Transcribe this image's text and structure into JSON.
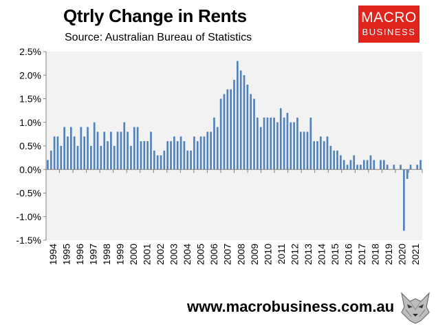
{
  "header": {
    "title": "Qtrly Change in Rents",
    "subtitle": "Source: Australian Bureau of Statistics"
  },
  "logo": {
    "line1": "MACRO",
    "line2": "BUSINESS",
    "color": "#e0231c"
  },
  "footer": {
    "url": "www.macrobusiness.com.au"
  },
  "colors": {
    "bar": "#4f81bd",
    "plot_bg": "#f2f2f2",
    "axis": "#808080"
  },
  "chart_data": {
    "type": "bar",
    "title": "Qtrly Change in Rents",
    "subtitle": "Source: Australian Bureau of Statistics",
    "xlabel": "",
    "ylabel": "",
    "ylim": [
      -0.015,
      0.025
    ],
    "yticks": [
      {
        "value": 0.025,
        "label": "2.5%"
      },
      {
        "value": 0.02,
        "label": "2.0%"
      },
      {
        "value": 0.015,
        "label": "1.5%"
      },
      {
        "value": 0.01,
        "label": "1.0%"
      },
      {
        "value": 0.005,
        "label": "0.5%"
      },
      {
        "value": 0,
        "label": "0.0%"
      },
      {
        "value": -0.005,
        "label": "-0.5%"
      },
      {
        "value": -0.01,
        "label": "-1.0%"
      },
      {
        "value": -0.015,
        "label": "-1.5%"
      }
    ],
    "xtick_labels": [
      "1994",
      "1995",
      "1996",
      "1997",
      "1998",
      "1999",
      "2000",
      "2001",
      "2002",
      "2003",
      "2004",
      "2005",
      "2006",
      "2007",
      "2008",
      "2009",
      "2010",
      "2011",
      "2012",
      "2013",
      "2014",
      "2015",
      "2016",
      "2017",
      "2018",
      "2019",
      "2020",
      "2021"
    ],
    "grid": false,
    "legend": "none",
    "series": [
      {
        "values": [
          0.002,
          0.004,
          0.007,
          0.007,
          0.005,
          0.009,
          0.007,
          0.009,
          0.007,
          0.005,
          0.009,
          0.007,
          0.009,
          0.005,
          0.01,
          0.008,
          0.005,
          0.008,
          0.006,
          0.008,
          0.005,
          0.008,
          0.008,
          0.01,
          0.008,
          0.005,
          0.009,
          0.009,
          0.006,
          0.006,
          0.006,
          0.008,
          0.004,
          0.003,
          0.003,
          0.004,
          0.006,
          0.006,
          0.007,
          0.006,
          0.007,
          0.006,
          0.004,
          0.004,
          0.007,
          0.006,
          0.007,
          0.007,
          0.008,
          0.008,
          0.011,
          0.009,
          0.015,
          0.016,
          0.017,
          0.017,
          0.019,
          0.023,
          0.021,
          0.02,
          0.018,
          0.016,
          0.015,
          0.011,
          0.009,
          0.011,
          0.011,
          0.011,
          0.011,
          0.01,
          0.013,
          0.011,
          0.012,
          0.01,
          0.01,
          0.011,
          0.008,
          0.008,
          0.008,
          0.011,
          0.006,
          0.006,
          0.007,
          0.006,
          0.007,
          0.005,
          0.004,
          0.004,
          0.003,
          0.002,
          0.001,
          0.002,
          0.003,
          0.001,
          0.001,
          0.002,
          0.002,
          0.003,
          0.002,
          0.0,
          0.002,
          0.002,
          0.001,
          0.0,
          0.001,
          0.0,
          0.001,
          -0.013,
          -0.002,
          0.001,
          0.0,
          0.001,
          0.002
        ]
      }
    ]
  }
}
